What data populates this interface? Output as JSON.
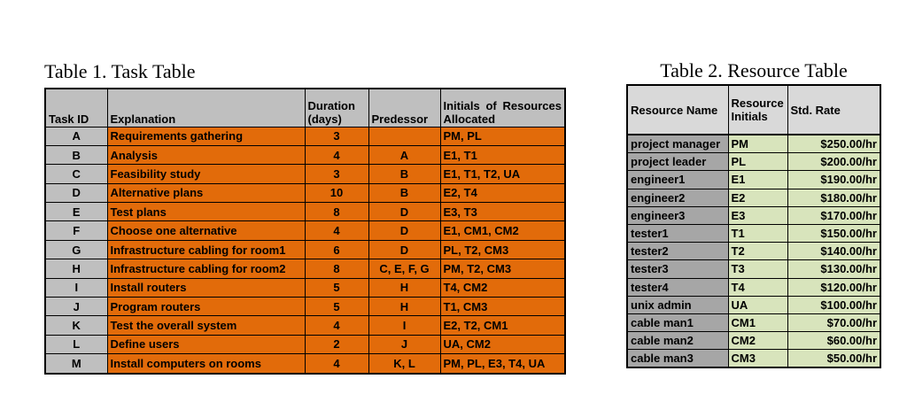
{
  "page": {
    "background": "#ffffff"
  },
  "table1": {
    "title": "Table 1. Task Table",
    "columns": [
      "Task ID",
      "Explanation",
      "Duration (days)",
      "Predessor",
      "Initials of Resources Allocated"
    ],
    "rows": [
      [
        "A",
        "Requirements gathering",
        "3",
        "",
        "PM, PL"
      ],
      [
        "B",
        "Analysis",
        "4",
        "A",
        "E1, T1"
      ],
      [
        "C",
        "Feasibility study",
        "3",
        "B",
        "E1, T1, T2, UA"
      ],
      [
        "D",
        "Alternative plans",
        "10",
        "B",
        "E2, T4"
      ],
      [
        "E",
        "Test plans",
        "8",
        "D",
        "E3, T3"
      ],
      [
        "F",
        "Choose one alternative",
        "4",
        "D",
        "E1, CM1, CM2"
      ],
      [
        "G",
        "Infrastructure cabling for room1",
        "6",
        "D",
        "PL, T2, CM3"
      ],
      [
        "H",
        "Infrastructure cabling for room2",
        "8",
        "C, E, F, G",
        "PM, T2, CM3"
      ],
      [
        "I",
        "Install routers",
        "5",
        "H",
        "T4, CM2"
      ],
      [
        "J",
        "Program routers",
        "5",
        "H",
        "T1, CM3"
      ],
      [
        "K",
        "Test the overall system",
        "4",
        "I",
        "E2, T2, CM1"
      ],
      [
        "L",
        "Define users",
        "2",
        "J",
        "UA, CM2"
      ],
      [
        "M",
        "Install computers on rooms",
        "4",
        "K, L",
        "PM, PL, E3, T4, UA"
      ]
    ],
    "colors": {
      "header_bg": "#BFBFBF",
      "task_id_bg": "#BFBFBF",
      "data_bg": "#E26B0A",
      "border": "#000000"
    }
  },
  "table2": {
    "title": "Table 2. Resource Table",
    "columns": [
      "Resource Name",
      "Resource Initials",
      "Std. Rate"
    ],
    "rows": [
      [
        "project manager",
        "PM",
        "$250.00/hr"
      ],
      [
        "project leader",
        "PL",
        "$200.00/hr"
      ],
      [
        "engineer1",
        "E1",
        "$190.00/hr"
      ],
      [
        "engineer2",
        "E2",
        "$180.00/hr"
      ],
      [
        "engineer3",
        "E3",
        "$170.00/hr"
      ],
      [
        "tester1",
        "T1",
        "$150.00/hr"
      ],
      [
        "tester2",
        "T2",
        "$140.00/hr"
      ],
      [
        "tester3",
        "T3",
        "$130.00/hr"
      ],
      [
        "tester4",
        "T4",
        "$120.00/hr"
      ],
      [
        "unix admin",
        "UA",
        "$100.00/hr"
      ],
      [
        "cable man1",
        "CM1",
        "$70.00/hr"
      ],
      [
        "cable man2",
        "CM2",
        "$60.00/hr"
      ],
      [
        "cable man3",
        "CM3",
        "$50.00/hr"
      ]
    ],
    "colors": {
      "header_bg": "#D9D9D9",
      "name_bg": "#A6A6A6",
      "data_bg": "#D8E4BC",
      "border": "#000000"
    }
  }
}
